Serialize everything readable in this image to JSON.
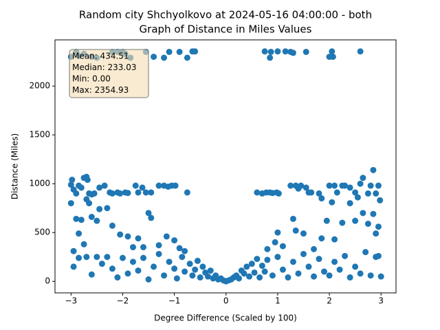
{
  "chart_data": {
    "type": "scatter",
    "title": [
      "Random city Shchyolkovo at 2024-05-16 04:00:00  - both",
      "Graph of Distance in Miles Values"
    ],
    "x_label": "Degree Difference (Scaled by 100)",
    "y_label": "Distance (Miles)",
    "annotation": [
      "Mean: 434.51",
      "Median: 233.03",
      "Min: 0.00",
      "Max: 2354.93"
    ],
    "color": "#1f77b4",
    "xlim": [
      -3.31,
      3.29
    ],
    "ylim": [
      -118,
      2473
    ],
    "xticks": [
      {
        "value": -3,
        "label": "−3"
      },
      {
        "value": -2,
        "label": "−2"
      },
      {
        "value": -1,
        "label": "−1"
      },
      0,
      1,
      2,
      3
    ],
    "yticks": [
      0,
      500,
      1000,
      1500,
      2000
    ],
    "x": [
      -3.0,
      -2.9,
      -2.85,
      -2.75,
      -2.6,
      -2.5,
      -2.2,
      -2.1,
      -2.0,
      -1.95,
      -1.85,
      -1.55,
      -1.4,
      -1.2,
      -1.1,
      -0.9,
      -0.75,
      -0.65,
      -0.6,
      0.75,
      0.85,
      0.87,
      1.0,
      1.15,
      1.25,
      1.3,
      1.55,
      2.05,
      2.0,
      2.07,
      2.6,
      -3,
      -2.98,
      -2.95,
      -2.9,
      -2.85,
      -2.8,
      -2.75,
      -2.7,
      -2.68,
      -2.65,
      -2.6,
      -2.55,
      -2.45,
      -2.35,
      -2.25,
      -2.2,
      -2.1,
      -2.05,
      -1.95,
      -1.9,
      -1.75,
      -1.7,
      -1.62,
      -1.55,
      -1.45,
      -1.3,
      -1.2,
      -1.12,
      -1.05,
      -0.98,
      -0.75,
      -3,
      -2.65,
      -2.7,
      0.6,
      0.7,
      0.78,
      0.85,
      0.9,
      0.98,
      1.02,
      1.25,
      1.35,
      1.4,
      1.45,
      1.55,
      1.6,
      1.65,
      1.8,
      1.85,
      2.0,
      2.1,
      2.15,
      2.25,
      2.3,
      2.4,
      2.5,
      2.6,
      2.65,
      2.75,
      2.8,
      2.85,
      2.9,
      2.95,
      2.98,
      2.05,
      2.55,
      -2.95,
      -2.9,
      -2.8,
      -2.85,
      -2.75,
      -2.6,
      -2.5,
      -2.45,
      -2.3,
      -2.2,
      -2.05,
      -1.9,
      -1.8,
      -1.7,
      -1.6,
      -1.5,
      -1.45,
      -1.3,
      -1.15,
      -1.0,
      -0.9,
      -0.8,
      0.8,
      0.95,
      1.0,
      1.1,
      1.3,
      1.35,
      1.5,
      1.7,
      1.85,
      1.95,
      2.1,
      2.25,
      2.4,
      2.5,
      2.65,
      2.75,
      2.85,
      2.9,
      2.95,
      -2.95,
      -2.85,
      -2.7,
      -2.6,
      -2.5,
      -2.4,
      -2.3,
      -2.2,
      -2.1,
      -2.0,
      -1.9,
      -1.8,
      -1.7,
      -1.6,
      -1.5,
      -1.4,
      -1.3,
      -1.2,
      -1.1,
      -1.0,
      -0.95,
      -0.85,
      -0.8,
      -0.7,
      -0.65,
      -0.6,
      -0.55,
      -0.5,
      -0.45,
      -0.4,
      -0.35,
      -0.3,
      -0.25,
      -0.2,
      -0.15,
      -0.1,
      -0.05,
      0,
      0.05,
      0.1,
      0.15,
      0.2,
      0.25,
      0.3,
      0.35,
      0.4,
      0.45,
      0.5,
      0.55,
      0.6,
      0.65,
      0.7,
      0.75,
      0.8,
      0.9,
      1.0,
      1.1,
      1.2,
      1.3,
      1.4,
      1.5,
      1.6,
      1.7,
      1.8,
      1.9,
      2.0,
      2.1,
      2.2,
      2.3,
      2.4,
      2.5,
      2.6,
      2.7,
      2.8,
      2.9,
      3.0,
      2.95
    ],
    "values": [
      2300,
      2350,
      2310,
      2330,
      2300,
      2290,
      2350,
      2350,
      2350,
      2330,
      2290,
      2350,
      2300,
      2290,
      2350,
      2350,
      2290,
      2355,
      2355,
      2355,
      2290,
      2350,
      2355,
      2355,
      2350,
      2340,
      2350,
      2355,
      2300,
      2300,
      2355,
      990,
      1040,
      940,
      900,
      980,
      960,
      1060,
      1070,
      1040,
      900,
      890,
      900,
      960,
      980,
      910,
      900,
      910,
      900,
      910,
      905,
      980,
      910,
      960,
      910,
      910,
      980,
      980,
      970,
      980,
      980,
      910,
      800,
      800,
      840,
      910,
      900,
      910,
      910,
      905,
      910,
      900,
      980,
      980,
      950,
      980,
      960,
      910,
      910,
      900,
      850,
      980,
      980,
      910,
      980,
      980,
      960,
      910,
      1000,
      1060,
      900,
      980,
      1140,
      900,
      980,
      830,
      810,
      860,
      310,
      640,
      630,
      490,
      380,
      660,
      620,
      740,
      750,
      570,
      480,
      460,
      350,
      440,
      350,
      700,
      650,
      370,
      460,
      420,
      340,
      310,
      330,
      400,
      500,
      360,
      640,
      520,
      490,
      330,
      440,
      620,
      430,
      600,
      800,
      620,
      700,
      590,
      690,
      490,
      560,
      150,
      240,
      250,
      70,
      250,
      180,
      250,
      130,
      40,
      240,
      80,
      200,
      110,
      240,
      20,
      150,
      280,
      60,
      200,
      130,
      30,
      250,
      100,
      180,
      60,
      120,
      210,
      40,
      150,
      90,
      50,
      110,
      30,
      60,
      20,
      30,
      10,
      0,
      10,
      20,
      40,
      60,
      30,
      110,
      80,
      150,
      50,
      180,
      90,
      230,
      40,
      160,
      100,
      220,
      60,
      250,
      120,
      40,
      200,
      80,
      280,
      150,
      50,
      230,
      100,
      60,
      200,
      120,
      260,
      40,
      150,
      80,
      300,
      60,
      250,
      50,
      260
    ]
  }
}
